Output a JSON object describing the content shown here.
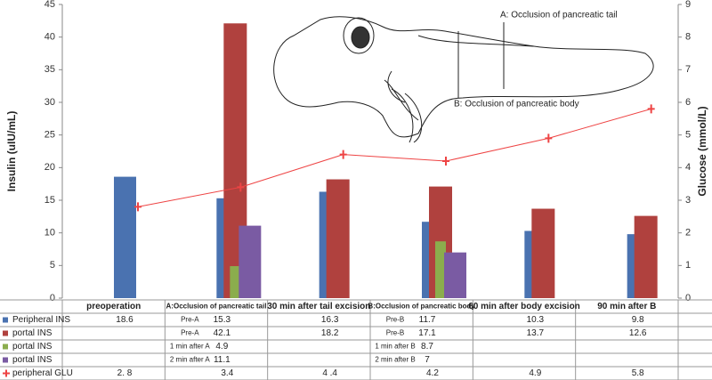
{
  "chart_data": {
    "type": "bar_line_table",
    "ylabel": "Insulin (uIU/mL)",
    "y2label": "Glucose (mmol/L)",
    "categories": [
      "preoperation",
      "A:Occlusion of pancreatic tail",
      "30 min after tail excision",
      "B:Occlusion of pancreatic body",
      "60 min after body excision",
      "90 min after B"
    ],
    "ylim": [
      0,
      45
    ],
    "yticks": [
      0,
      5,
      10,
      15,
      20,
      25,
      30,
      35,
      40,
      45
    ],
    "y2lim": [
      0,
      9
    ],
    "y2ticks": [
      0,
      1,
      2,
      3,
      4,
      5,
      6,
      7,
      8,
      9
    ],
    "annotations": [
      "A: Occlusion of pancreatic tail",
      "B: Occlusion of pancreatic body"
    ],
    "series": [
      {
        "name": "Peripheral INS",
        "type": "bar",
        "color": "#4a72b0",
        "values": [
          18.6,
          15.3,
          16.3,
          11.7,
          10.3,
          9.8
        ],
        "table_labels": [
          null,
          "Pre-A",
          null,
          "Pre-B",
          null,
          null
        ]
      },
      {
        "name": "portal INS",
        "type": "bar",
        "color": "#b0413e",
        "values": [
          null,
          42.1,
          18.2,
          17.1,
          13.7,
          12.6
        ],
        "table_labels": [
          null,
          "Pre-A",
          null,
          "Pre-B",
          null,
          null
        ]
      },
      {
        "name": "portal INS",
        "type": "bar",
        "color": "#8bad4d",
        "values": [
          null,
          4.9,
          null,
          8.7,
          null,
          null
        ],
        "table_labels": [
          null,
          "1 min after A",
          null,
          "1 min after B",
          null,
          null
        ]
      },
      {
        "name": "portal INS",
        "type": "bar",
        "color": "#7a5ba3",
        "values": [
          null,
          11.1,
          null,
          7,
          null,
          null
        ],
        "table_labels": [
          null,
          "2 min after A",
          null,
          "2 min after B",
          null,
          null
        ]
      },
      {
        "name": "peripheral GLU",
        "type": "line",
        "axis": "y2",
        "color": "#ee4444",
        "values": [
          2.8,
          3.4,
          4.4,
          4.2,
          4.9,
          5.8
        ],
        "value_labels": [
          "2. 8",
          "3.4",
          "4 .4",
          "4.2",
          "4.9",
          "5.8"
        ]
      }
    ]
  }
}
